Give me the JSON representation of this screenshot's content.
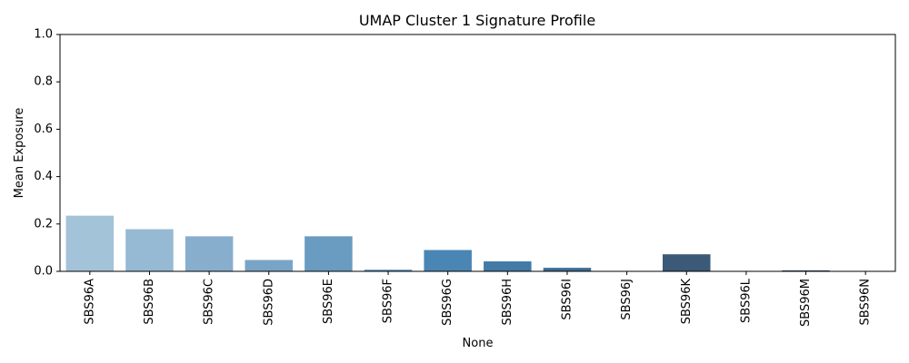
{
  "chart_data": {
    "type": "bar",
    "title": "UMAP Cluster 1 Signature Profile",
    "xlabel": "None",
    "ylabel": "Mean Exposure",
    "ylim": [
      0,
      1.0
    ],
    "yticks": [
      "0.0",
      "0.2",
      "0.4",
      "0.6",
      "0.8",
      "1.0"
    ],
    "categories": [
      "SBS96A",
      "SBS96B",
      "SBS96C",
      "SBS96D",
      "SBS96E",
      "SBS96F",
      "SBS96G",
      "SBS96H",
      "SBS96I",
      "SBS96J",
      "SBS96K",
      "SBS96L",
      "SBS96M",
      "SBS96N"
    ],
    "values": [
      0.235,
      0.178,
      0.148,
      0.048,
      0.148,
      0.007,
      0.09,
      0.042,
      0.015,
      0.0,
      0.072,
      0.0,
      0.004,
      0.0
    ],
    "colors": [
      "#a3c3d9",
      "#96bad4",
      "#88aecd",
      "#7aa4c6",
      "#6a9bc0",
      "#5b92bb",
      "#4a86b4",
      "#437aa6",
      "#3f6e97",
      "#3b6488",
      "#3a5a78",
      "#37516c",
      "#33485f",
      "#2f3f54"
    ],
    "grid": false,
    "legend": "none"
  }
}
